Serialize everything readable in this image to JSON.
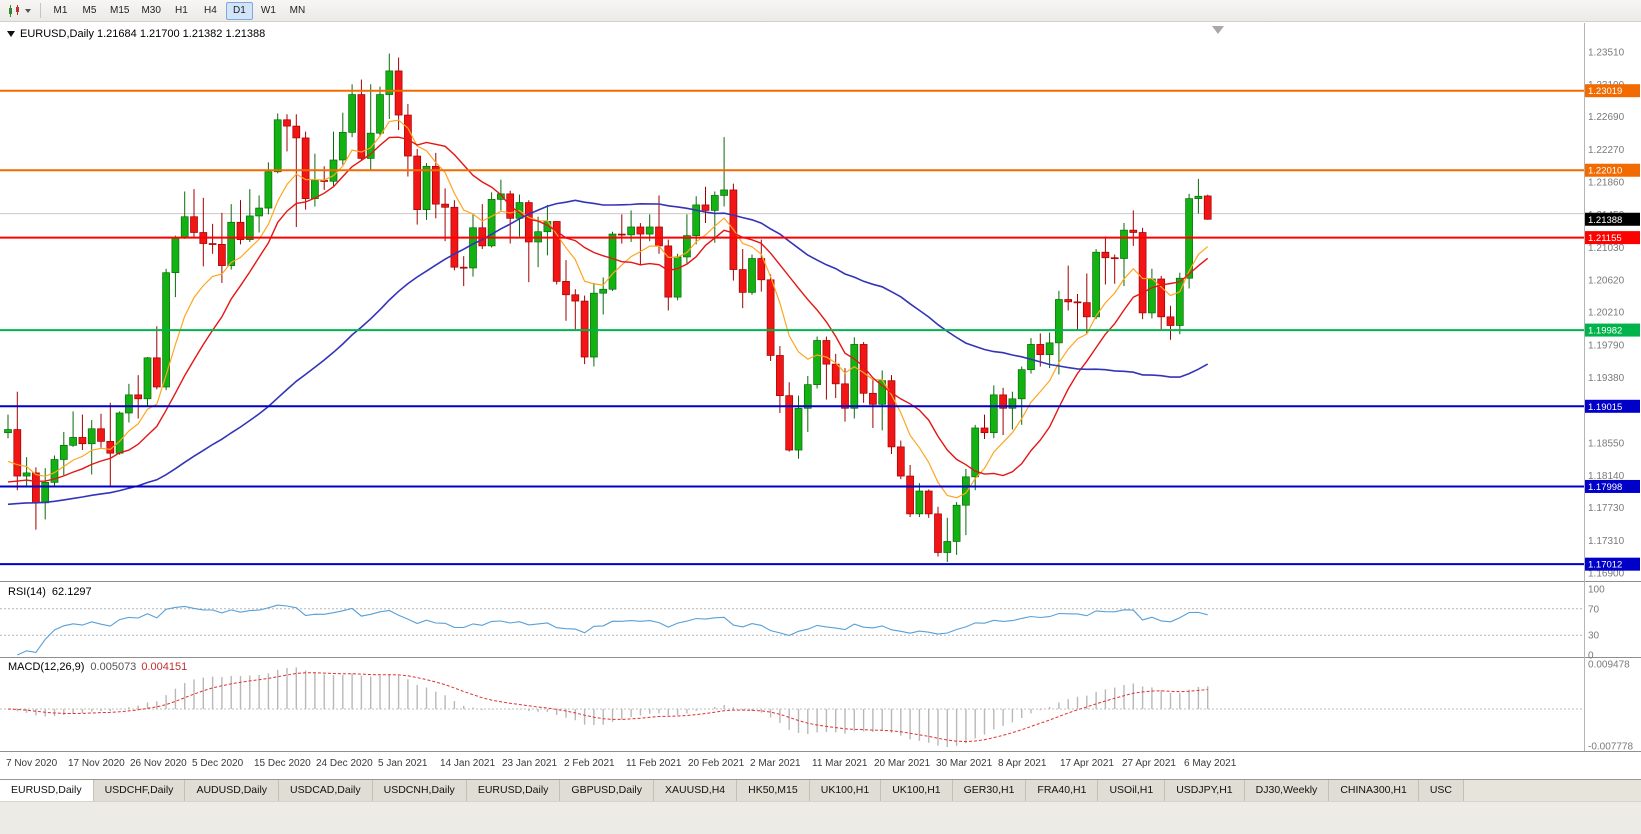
{
  "toolbar": {
    "timeframes": [
      "M1",
      "M5",
      "M15",
      "M30",
      "H1",
      "H4",
      "D1",
      "W1",
      "MN"
    ],
    "active_timeframe": "D1"
  },
  "chart": {
    "title_line": "EURUSD,Daily 1.21684 1.21700 1.21382 1.21388"
  },
  "chart_data": {
    "type": "candlestick",
    "symbol": "EURUSD",
    "timeframe": "Daily",
    "current_bar": {
      "open": 1.21684,
      "high": 1.217,
      "low": 1.21382,
      "close": 1.21388
    },
    "up_color": "#12b212",
    "down_color": "#f21515",
    "x_labels": [
      "7 Nov 2020",
      "17 Nov 2020",
      "26 Nov 2020",
      "5 Dec 2020",
      "15 Dec 2020",
      "24 Dec 2020",
      "5 Jan 2021",
      "14 Jan 2021",
      "23 Jan 2021",
      "2 Feb 2021",
      "11 Feb 2021",
      "20 Feb 2021",
      "2 Mar 2021",
      "11 Mar 2021",
      "20 Mar 2021",
      "30 Mar 2021",
      "8 Apr 2021",
      "17 Apr 2021",
      "27 Apr 2021",
      "6 May 2021"
    ],
    "y_ticks": [
      "1.23510",
      "1.23100",
      "1.22690",
      "1.22270",
      "1.21860",
      "1.21450",
      "1.21030",
      "1.20620",
      "1.20210",
      "1.19790",
      "1.19380",
      "1.18550",
      "1.18140",
      "1.17730",
      "1.17310",
      "1.16900"
    ],
    "y_range": {
      "min": 1.169,
      "max": 1.2351
    },
    "candles": [
      [
        1.1868,
        1.1891,
        1.1861,
        1.1872
      ],
      [
        1.1872,
        1.192,
        1.1795,
        1.1813
      ],
      [
        1.1813,
        1.1837,
        1.18,
        1.1817
      ],
      [
        1.1817,
        1.1824,
        1.1745,
        1.1779
      ],
      [
        1.1779,
        1.1823,
        1.1758,
        1.1805
      ],
      [
        1.1805,
        1.1839,
        1.1799,
        1.1834
      ],
      [
        1.1834,
        1.1869,
        1.1814,
        1.1852
      ],
      [
        1.1852,
        1.1895,
        1.185,
        1.1862
      ],
      [
        1.1862,
        1.1891,
        1.1846,
        1.1854
      ],
      [
        1.1854,
        1.1884,
        1.1815,
        1.1873
      ],
      [
        1.1873,
        1.1892,
        1.1849,
        1.1857
      ],
      [
        1.1857,
        1.1906,
        1.18,
        1.1842
      ],
      [
        1.1842,
        1.1895,
        1.184,
        1.1893
      ],
      [
        1.1893,
        1.193,
        1.1881,
        1.1916
      ],
      [
        1.1916,
        1.1941,
        1.1886,
        1.1911
      ],
      [
        1.1911,
        1.1964,
        1.1901,
        1.1963
      ],
      [
        1.1963,
        1.2003,
        1.1923,
        1.1926
      ],
      [
        1.1926,
        1.2076,
        1.1922,
        1.2071
      ],
      [
        1.2071,
        1.2118,
        1.204,
        1.2115
      ],
      [
        1.2115,
        1.2174,
        1.2114,
        1.2142
      ],
      [
        1.2142,
        1.2177,
        1.2115,
        1.2122
      ],
      [
        1.2122,
        1.2166,
        1.2079,
        1.2108
      ],
      [
        1.2108,
        1.2133,
        1.2095,
        1.2107
      ],
      [
        1.2107,
        1.2147,
        1.2058,
        1.208
      ],
      [
        1.208,
        1.2158,
        1.2075,
        1.2135
      ],
      [
        1.2135,
        1.2163,
        1.2107,
        1.2113
      ],
      [
        1.2113,
        1.2177,
        1.211,
        1.2143
      ],
      [
        1.2143,
        1.2169,
        1.2122,
        1.2153
      ],
      [
        1.2153,
        1.2211,
        1.2145,
        1.2199
      ],
      [
        1.2199,
        1.2273,
        1.2197,
        1.2265
      ],
      [
        1.2265,
        1.2272,
        1.2225,
        1.2257
      ],
      [
        1.2257,
        1.2272,
        1.2129,
        1.2242
      ],
      [
        1.2242,
        1.225,
        1.2151,
        1.2165
      ],
      [
        1.2165,
        1.2222,
        1.2155,
        1.2188
      ],
      [
        1.2188,
        1.2206,
        1.2176,
        1.2187
      ],
      [
        1.2187,
        1.225,
        1.2181,
        1.2214
      ],
      [
        1.2214,
        1.2274,
        1.2208,
        1.2249
      ],
      [
        1.2249,
        1.231,
        1.2243,
        1.2297
      ],
      [
        1.2297,
        1.2316,
        1.2214,
        1.2216
      ],
      [
        1.2216,
        1.231,
        1.22,
        1.2248
      ],
      [
        1.2248,
        1.2307,
        1.2245,
        1.2297
      ],
      [
        1.2297,
        1.2349,
        1.2266,
        1.2327
      ],
      [
        1.2327,
        1.2344,
        1.2252,
        1.2271
      ],
      [
        1.2271,
        1.2285,
        1.2193,
        1.2219
      ],
      [
        1.2219,
        1.2228,
        1.2132,
        1.2151
      ],
      [
        1.2151,
        1.221,
        1.2138,
        1.2206
      ],
      [
        1.2206,
        1.2223,
        1.214,
        1.2158
      ],
      [
        1.2158,
        1.2178,
        1.2111,
        1.2154
      ],
      [
        1.2154,
        1.2163,
        1.2074,
        1.2078
      ],
      [
        1.2078,
        1.2092,
        1.2054,
        1.2077
      ],
      [
        1.2077,
        1.2145,
        1.2066,
        1.2128
      ],
      [
        1.2128,
        1.2158,
        1.2101,
        1.2105
      ],
      [
        1.2105,
        1.2173,
        1.2103,
        1.2164
      ],
      [
        1.2164,
        1.2189,
        1.215,
        1.2171
      ],
      [
        1.2171,
        1.2175,
        1.2108,
        1.214
      ],
      [
        1.214,
        1.217,
        1.2117,
        1.216
      ],
      [
        1.216,
        1.2163,
        1.2059,
        1.211
      ],
      [
        1.211,
        1.2142,
        1.2078,
        1.2123
      ],
      [
        1.2123,
        1.2157,
        1.2093,
        1.2136
      ],
      [
        1.2136,
        1.2136,
        1.2056,
        1.206
      ],
      [
        1.206,
        1.2087,
        1.201,
        1.2043
      ],
      [
        1.2043,
        1.205,
        1.1999,
        1.2035
      ],
      [
        1.2035,
        1.2042,
        1.1955,
        1.1964
      ],
      [
        1.1964,
        1.2058,
        1.1952,
        1.2045
      ],
      [
        1.2045,
        1.2065,
        1.2018,
        1.205
      ],
      [
        1.205,
        1.2123,
        1.2048,
        1.212
      ],
      [
        1.212,
        1.2145,
        1.2108,
        1.2119
      ],
      [
        1.2119,
        1.215,
        1.211,
        1.2129
      ],
      [
        1.2129,
        1.2134,
        1.208,
        1.212
      ],
      [
        1.212,
        1.2145,
        1.2111,
        1.2129
      ],
      [
        1.2129,
        1.2169,
        1.2095,
        1.2105
      ],
      [
        1.2105,
        1.2113,
        1.2023,
        1.204
      ],
      [
        1.204,
        1.2095,
        1.2036,
        1.2091
      ],
      [
        1.2091,
        1.2145,
        1.2082,
        1.2118
      ],
      [
        1.2118,
        1.2168,
        1.2107,
        1.2157
      ],
      [
        1.2157,
        1.218,
        1.2134,
        1.215
      ],
      [
        1.215,
        1.2174,
        1.2109,
        1.2169
      ],
      [
        1.2169,
        1.2243,
        1.2155,
        1.2176
      ],
      [
        1.2176,
        1.2184,
        1.2061,
        1.2075
      ],
      [
        1.2075,
        1.2101,
        1.2026,
        1.2046
      ],
      [
        1.2046,
        1.2094,
        1.2043,
        1.2089
      ],
      [
        1.2089,
        1.2113,
        1.2047,
        1.2062
      ],
      [
        1.2062,
        1.2069,
        1.1959,
        1.1966
      ],
      [
        1.1966,
        1.1978,
        1.1893,
        1.1915
      ],
      [
        1.1915,
        1.1932,
        1.1844,
        1.1846
      ],
      [
        1.1846,
        1.1915,
        1.1835,
        1.1899
      ],
      [
        1.1899,
        1.194,
        1.1869,
        1.1929
      ],
      [
        1.1929,
        1.199,
        1.1924,
        1.1985
      ],
      [
        1.1985,
        1.199,
        1.191,
        1.1955
      ],
      [
        1.1955,
        1.1968,
        1.1912,
        1.193
      ],
      [
        1.193,
        1.195,
        1.1882,
        1.1899
      ],
      [
        1.1899,
        1.1989,
        1.1886,
        1.198
      ],
      [
        1.198,
        1.1983,
        1.1906,
        1.1918
      ],
      [
        1.1918,
        1.1936,
        1.1874,
        1.1904
      ],
      [
        1.1904,
        1.1947,
        1.1871,
        1.1934
      ],
      [
        1.1934,
        1.1941,
        1.1841,
        1.185
      ],
      [
        1.185,
        1.1858,
        1.1809,
        1.1813
      ],
      [
        1.1813,
        1.1827,
        1.1761,
        1.1765
      ],
      [
        1.1765,
        1.1804,
        1.1761,
        1.1794
      ],
      [
        1.1794,
        1.1796,
        1.176,
        1.1765
      ],
      [
        1.1765,
        1.1774,
        1.1711,
        1.1716
      ],
      [
        1.1716,
        1.176,
        1.1704,
        1.173
      ],
      [
        1.173,
        1.178,
        1.1713,
        1.1776
      ],
      [
        1.1776,
        1.1822,
        1.1738,
        1.1812
      ],
      [
        1.1812,
        1.1878,
        1.1795,
        1.1874
      ],
      [
        1.1874,
        1.1891,
        1.186,
        1.1868
      ],
      [
        1.1868,
        1.1928,
        1.1861,
        1.1916
      ],
      [
        1.1916,
        1.1925,
        1.1865,
        1.1899
      ],
      [
        1.1899,
        1.192,
        1.1872,
        1.1911
      ],
      [
        1.1911,
        1.1952,
        1.1878,
        1.1948
      ],
      [
        1.1948,
        1.1988,
        1.1943,
        1.198
      ],
      [
        1.198,
        1.1994,
        1.1952,
        1.1967
      ],
      [
        1.1967,
        1.1995,
        1.195,
        1.1982
      ],
      [
        1.1982,
        1.2048,
        1.1942,
        1.2037
      ],
      [
        1.2037,
        1.208,
        1.2023,
        1.2034
      ],
      [
        1.2034,
        1.2044,
        1.1997,
        1.2033
      ],
      [
        1.2033,
        1.207,
        1.1993,
        1.2015
      ],
      [
        1.2015,
        1.2101,
        1.2012,
        1.2097
      ],
      [
        1.2097,
        1.2117,
        1.2056,
        1.209
      ],
      [
        1.209,
        1.2094,
        1.2057,
        1.2089
      ],
      [
        1.2089,
        1.2134,
        1.2054,
        1.2125
      ],
      [
        1.2125,
        1.215,
        1.2105,
        1.2122
      ],
      [
        1.2122,
        1.2128,
        1.2012,
        1.202
      ],
      [
        1.202,
        1.2076,
        1.2013,
        1.2063
      ],
      [
        1.2063,
        1.2067,
        1.1999,
        1.2015
      ],
      [
        1.2015,
        1.2029,
        1.1986,
        1.2004
      ],
      [
        1.2004,
        1.2071,
        1.1993,
        1.2064
      ],
      [
        1.2064,
        1.2171,
        1.2051,
        1.2165
      ],
      [
        1.2165,
        1.219,
        1.2146,
        1.2168
      ],
      [
        1.21684,
        1.217,
        1.21382,
        1.21388
      ]
    ],
    "moving_averages": [
      {
        "name": "ma-fast",
        "type": "ema",
        "period": 8,
        "color": "#ffa520",
        "width": 1.2,
        "seed": 1.182
      },
      {
        "name": "ma-medium",
        "type": "sma",
        "period": 13,
        "color": "#e51515",
        "width": 1.4,
        "seed": 1.18
      },
      {
        "name": "ma-slow",
        "type": "sma",
        "period": 45,
        "color": "#3434b8",
        "width": 1.6,
        "seed": 1.1775
      }
    ],
    "hlines": [
      {
        "price": 1.23019,
        "label": "1.23019",
        "color": "#f26b00"
      },
      {
        "price": 1.2201,
        "label": "1.22010",
        "color": "#f26b00"
      },
      {
        "price": 1.21155,
        "label": "1.21155",
        "color": "#ff0000"
      },
      {
        "price": 1.19982,
        "label": "1.19982",
        "color": "#00b44b"
      },
      {
        "price": 1.19015,
        "label": "1.19015",
        "color": "#0000c8"
      },
      {
        "price": 1.17998,
        "label": "1.17998",
        "color": "#0000c8"
      },
      {
        "price": 1.17012,
        "label": "1.17012",
        "color": "#0000c8"
      }
    ],
    "ask_line": {
      "price": 1.2146,
      "color": "#c9c9c9"
    },
    "price_tag": {
      "label": "1.21388",
      "price": 1.21388,
      "bg": "#000000",
      "fg": "#ffffff"
    },
    "rsi": {
      "label": "RSI(14)",
      "value": "62.1297",
      "period": 14,
      "color": "#58a0d8",
      "ticks": [
        "100",
        "70",
        "30",
        "0"
      ],
      "upper": 70,
      "lower": 30
    },
    "macd": {
      "label": "MACD(12,26,9)",
      "value_main": "0.005073",
      "value_signal": "0.004151",
      "fast": 12,
      "slow": 26,
      "signal": 9,
      "histogram_color": "#b8b8b8",
      "signal_color": "#e03030",
      "scale_top": "0.009478",
      "scale_bottom": "-0.007778"
    }
  },
  "tabs": {
    "items": [
      {
        "label": "EURUSD,Daily",
        "active": true
      },
      {
        "label": "USDCHF,Daily",
        "active": false
      },
      {
        "label": "AUDUSD,Daily",
        "active": false
      },
      {
        "label": "USDCAD,Daily",
        "active": false
      },
      {
        "label": "USDCNH,Daily",
        "active": false
      },
      {
        "label": "EURUSD,Daily",
        "active": false
      },
      {
        "label": "GBPUSD,Daily",
        "active": false
      },
      {
        "label": "XAUUSD,H4",
        "active": false
      },
      {
        "label": "HK50,M15",
        "active": false
      },
      {
        "label": "UK100,H1",
        "active": false
      },
      {
        "label": "UK100,H1",
        "active": false
      },
      {
        "label": "GER30,H1",
        "active": false
      },
      {
        "label": "FRA40,H1",
        "active": false
      },
      {
        "label": "USOil,H1",
        "active": false
      },
      {
        "label": "USDJPY,H1",
        "active": false
      },
      {
        "label": "DJ30,Weekly",
        "active": false
      },
      {
        "label": "CHINA300,H1",
        "active": false
      },
      {
        "label": "USC",
        "active": false
      }
    ]
  }
}
